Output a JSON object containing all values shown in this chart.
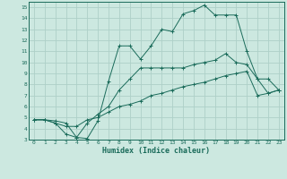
{
  "xlabel": "Humidex (Indice chaleur)",
  "xlim": [
    -0.5,
    23.5
  ],
  "ylim": [
    3,
    15.5
  ],
  "yticks": [
    3,
    4,
    5,
    6,
    7,
    8,
    9,
    10,
    11,
    12,
    13,
    14,
    15
  ],
  "xticks": [
    0,
    1,
    2,
    3,
    4,
    5,
    6,
    7,
    8,
    9,
    10,
    11,
    12,
    13,
    14,
    15,
    16,
    17,
    18,
    19,
    20,
    21,
    22,
    23
  ],
  "bg_color": "#cce8e0",
  "line_color": "#1a6b5a",
  "grid_color": "#aed0c8",
  "line1_x": [
    0,
    1,
    2,
    3,
    4,
    5,
    6,
    7,
    8,
    9,
    10,
    11,
    12,
    13,
    14,
    15,
    16,
    17,
    18,
    19,
    20,
    21,
    22,
    23
  ],
  "line1_y": [
    4.8,
    4.8,
    4.7,
    4.5,
    3.2,
    3.1,
    4.7,
    8.3,
    11.5,
    11.5,
    10.3,
    11.5,
    13.0,
    12.8,
    14.4,
    14.7,
    15.2,
    14.3,
    14.3,
    14.3,
    11.0,
    8.5,
    7.2,
    7.5
  ],
  "line2_x": [
    0,
    1,
    2,
    3,
    4,
    5,
    6,
    7,
    8,
    9,
    10,
    11,
    12,
    13,
    14,
    15,
    16,
    17,
    18,
    19,
    20,
    21,
    22,
    23
  ],
  "line2_y": [
    4.8,
    4.8,
    4.5,
    3.5,
    3.2,
    4.5,
    5.3,
    6.0,
    7.5,
    8.5,
    9.5,
    9.5,
    9.5,
    9.5,
    9.5,
    9.8,
    10.0,
    10.2,
    10.8,
    10.0,
    9.8,
    8.5,
    8.5,
    7.5
  ],
  "line3_x": [
    0,
    1,
    2,
    3,
    4,
    5,
    6,
    7,
    8,
    9,
    10,
    11,
    12,
    13,
    14,
    15,
    16,
    17,
    18,
    19,
    20,
    21,
    22,
    23
  ],
  "line3_y": [
    4.8,
    4.8,
    4.5,
    4.2,
    4.2,
    4.8,
    5.0,
    5.5,
    6.0,
    6.2,
    6.5,
    7.0,
    7.2,
    7.5,
    7.8,
    8.0,
    8.2,
    8.5,
    8.8,
    9.0,
    9.2,
    7.0,
    7.2,
    7.5
  ]
}
